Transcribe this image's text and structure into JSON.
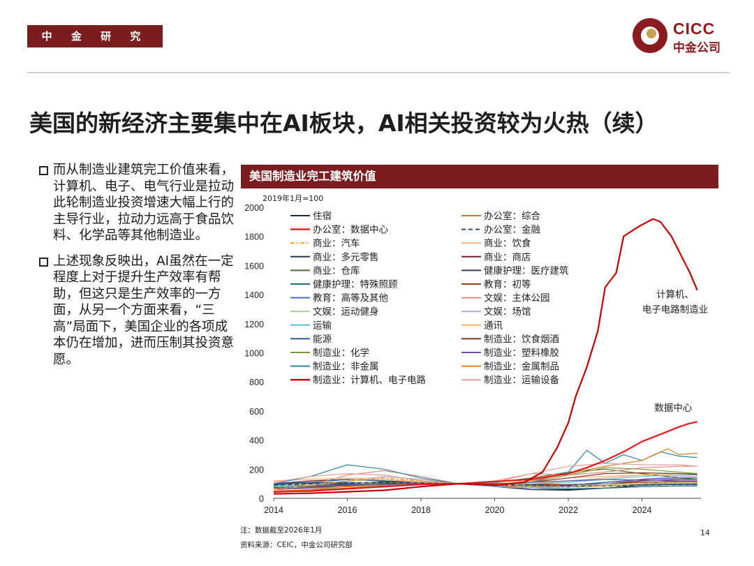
{
  "header": {
    "department": "中 金 研 究 部",
    "logo_en": "CICC",
    "logo_cn": "中金公司"
  },
  "title": "美国的新经济主要集中在AI板块，AI相关投资较为火热（续）",
  "bullets": [
    "而从制造业建筑完工价值来看，计算机、电子、电气行业是拉动此轮制造业投资增速大幅上行的主导行业，拉动力远高于食品饮料、化学品等其他制造业。",
    "上述现象反映出，AI虽然在一定程度上对于提升生产效率有帮助，但这只是生产效率的一方面，从另一个方面来看，“三高”局面下，美国企业的各项成本仍在增加，进而压制其投资意愿。"
  ],
  "chart_header": "美国制造业完工建筑价值",
  "chart_data": {
    "type": "line",
    "title": "美国制造业完工建筑价值",
    "unit_label": "2019年1月=100",
    "xlim": [
      2014,
      2025.6
    ],
    "ylim": [
      0,
      2000
    ],
    "xticks": [
      2014,
      2016,
      2018,
      2020,
      2022,
      2024
    ],
    "yticks": [
      0,
      200,
      400,
      600,
      800,
      1000,
      1200,
      1400,
      1600,
      1800,
      2000
    ],
    "annotations": [
      {
        "text": "计算机、",
        "x": 2024.9,
        "y": 1380
      },
      {
        "text": "电子电路制造业",
        "x": 2024.9,
        "y": 1275
      },
      {
        "text": "数据中心",
        "x": 2024.85,
        "y": 600
      }
    ],
    "series": [
      {
        "name": "住宿",
        "color": "#1f2d3d",
        "dash": "",
        "width": 1.2,
        "x": [
          2014,
          2015,
          2016,
          2017,
          2018,
          2019,
          2020,
          2021,
          2022,
          2023,
          2024,
          2025,
          2025.5
        ],
        "y": [
          70,
          85,
          100,
          115,
          105,
          100,
          85,
          60,
          55,
          70,
          90,
          95,
          95
        ]
      },
      {
        "name": "办公室：综合",
        "color": "#b5811a",
        "dash": "",
        "width": 1.2,
        "x": [
          2014,
          2015,
          2016,
          2017,
          2018,
          2019,
          2020,
          2021,
          2022,
          2023,
          2024,
          2025,
          2025.5
        ],
        "y": [
          60,
          75,
          90,
          100,
          100,
          100,
          95,
          85,
          80,
          85,
          95,
          100,
          100
        ]
      },
      {
        "name": "办公室：数据中心",
        "color": "#e41a1c",
        "dash": "",
        "width": 2.2,
        "x": [
          2014,
          2015,
          2016,
          2017,
          2018,
          2019,
          2020,
          2021,
          2022,
          2022.5,
          2023,
          2023.5,
          2024,
          2024.5,
          2025,
          2025.3,
          2025.5
        ],
        "y": [
          45,
          50,
          65,
          80,
          95,
          100,
          115,
          130,
          170,
          210,
          260,
          320,
          390,
          440,
          490,
          515,
          525
        ]
      },
      {
        "name": "办公室：金融",
        "color": "#2c4a7a",
        "dash": "6 4",
        "width": 1.6,
        "x": [
          2014,
          2015,
          2016,
          2017,
          2018,
          2019,
          2020,
          2021,
          2022,
          2023,
          2024,
          2025,
          2025.5
        ],
        "y": [
          90,
          100,
          105,
          110,
          105,
          100,
          95,
          90,
          85,
          85,
          90,
          95,
          95
        ]
      },
      {
        "name": "商业：汽车",
        "color": "#f0a020",
        "dash": "6 3 2 3",
        "width": 1.6,
        "x": [
          2014,
          2015,
          2016,
          2017,
          2018,
          2019,
          2020,
          2021,
          2022,
          2023,
          2024,
          2025,
          2025.5
        ],
        "y": [
          60,
          90,
          120,
          140,
          120,
          100,
          90,
          80,
          75,
          85,
          100,
          110,
          110
        ]
      },
      {
        "name": "商业：饮食",
        "color": "#f4b183",
        "dash": "",
        "width": 1.2,
        "x": [
          2014,
          2015,
          2016,
          2017,
          2018,
          2019,
          2020,
          2021,
          2022,
          2023,
          2024,
          2025,
          2025.5
        ],
        "y": [
          80,
          100,
          120,
          130,
          115,
          100,
          90,
          110,
          140,
          150,
          160,
          150,
          150
        ]
      },
      {
        "name": "商业：多元零售",
        "color": "#243b55",
        "dash": "",
        "width": 1.2,
        "x": [
          2014,
          2015,
          2016,
          2017,
          2018,
          2019,
          2020,
          2021,
          2022,
          2023,
          2024,
          2025,
          2025.5
        ],
        "y": [
          95,
          105,
          110,
          105,
          100,
          100,
          80,
          60,
          60,
          70,
          80,
          85,
          85
        ]
      },
      {
        "name": "商业：商店",
        "color": "#7b1c2a",
        "dash": "",
        "width": 1.2,
        "x": [
          2014,
          2015,
          2016,
          2017,
          2018,
          2019,
          2020,
          2021,
          2022,
          2023,
          2024,
          2025,
          2025.5
        ],
        "y": [
          100,
          120,
          130,
          120,
          110,
          100,
          80,
          70,
          80,
          100,
          120,
          130,
          130
        ]
      },
      {
        "name": "商业：仓库",
        "color": "#556b2f",
        "dash": "",
        "width": 1.2,
        "x": [
          2014,
          2015,
          2016,
          2017,
          2018,
          2019,
          2020,
          2021,
          2022,
          2023,
          2024,
          2025,
          2025.5
        ],
        "y": [
          40,
          55,
          70,
          85,
          95,
          100,
          110,
          140,
          180,
          200,
          170,
          140,
          130
        ]
      },
      {
        "name": "健康护理：医疗建筑",
        "color": "#3b3560",
        "dash": "",
        "width": 1.2,
        "x": [
          2014,
          2015,
          2016,
          2017,
          2018,
          2019,
          2020,
          2021,
          2022,
          2023,
          2024,
          2025,
          2025.5
        ],
        "y": [
          85,
          90,
          95,
          100,
          100,
          100,
          100,
          95,
          95,
          100,
          110,
          115,
          115
        ]
      },
      {
        "name": "健康护理：特殊照顾",
        "color": "#1f6f7a",
        "dash": "",
        "width": 1.2,
        "x": [
          2014,
          2015,
          2016,
          2017,
          2018,
          2019,
          2020,
          2021,
          2022,
          2023,
          2024,
          2025,
          2025.5
        ],
        "y": [
          90,
          110,
          130,
          120,
          110,
          100,
          85,
          70,
          65,
          70,
          80,
          85,
          85
        ]
      },
      {
        "name": "教育：初等",
        "color": "#8b4513",
        "dash": "",
        "width": 1.2,
        "x": [
          2014,
          2015,
          2016,
          2017,
          2018,
          2019,
          2020,
          2021,
          2022,
          2023,
          2024,
          2025,
          2025.5
        ],
        "y": [
          75,
          80,
          85,
          95,
          100,
          100,
          105,
          100,
          95,
          100,
          110,
          115,
          115
        ]
      },
      {
        "name": "教育：高等及其他",
        "color": "#4472c4",
        "dash": "",
        "width": 1.2,
        "x": [
          2014,
          2015,
          2016,
          2017,
          2018,
          2019,
          2020,
          2021,
          2022,
          2023,
          2024,
          2025,
          2025.5
        ],
        "y": [
          80,
          85,
          90,
          95,
          100,
          100,
          100,
          90,
          85,
          90,
          95,
          100,
          100
        ]
      },
      {
        "name": "文娱：主体公园",
        "color": "#e8877a",
        "dash": "",
        "width": 1.2,
        "x": [
          2014,
          2015,
          2016,
          2017,
          2018,
          2019,
          2020,
          2021,
          2022,
          2023,
          2024,
          2025,
          2025.5
        ],
        "y": [
          60,
          90,
          160,
          190,
          150,
          100,
          110,
          170,
          160,
          180,
          210,
          220,
          220
        ]
      },
      {
        "name": "文娱：运动健身",
        "color": "#a9d18e",
        "dash": "",
        "width": 1.2,
        "x": [
          2014,
          2015,
          2016,
          2017,
          2018,
          2019,
          2020,
          2021,
          2022,
          2023,
          2024,
          2025,
          2025.5
        ],
        "y": [
          85,
          95,
          105,
          110,
          105,
          100,
          95,
          85,
          80,
          90,
          100,
          105,
          105
        ]
      },
      {
        "name": "文娱：场馆",
        "color": "#b4a7d6",
        "dash": "",
        "width": 1.2,
        "x": [
          2014,
          2015,
          2016,
          2017,
          2018,
          2019,
          2020,
          2021,
          2022,
          2023,
          2024,
          2025,
          2025.5
        ],
        "y": [
          70,
          90,
          120,
          150,
          130,
          100,
          80,
          70,
          80,
          100,
          130,
          150,
          150
        ]
      },
      {
        "name": "运输",
        "color": "#5bc0de",
        "dash": "",
        "width": 1.2,
        "x": [
          2014,
          2015,
          2016,
          2017,
          2018,
          2019,
          2020,
          2021,
          2022,
          2023,
          2024,
          2025,
          2025.5
        ],
        "y": [
          80,
          85,
          90,
          95,
          100,
          100,
          105,
          100,
          110,
          130,
          150,
          160,
          160
        ]
      },
      {
        "name": "通讯",
        "color": "#f6b26b",
        "dash": "",
        "width": 1.2,
        "x": [
          2014,
          2015,
          2016,
          2017,
          2018,
          2019,
          2020,
          2021,
          2022,
          2023,
          2024,
          2025,
          2025.5
        ],
        "y": [
          120,
          130,
          140,
          130,
          110,
          100,
          90,
          100,
          120,
          140,
          160,
          170,
          170
        ]
      },
      {
        "name": "能源",
        "color": "#2f5597",
        "dash": "",
        "width": 1.2,
        "x": [
          2014,
          2015,
          2016,
          2017,
          2018,
          2019,
          2020,
          2021,
          2022,
          2023,
          2024,
          2025,
          2025.5
        ],
        "y": [
          100,
          110,
          100,
          95,
          100,
          100,
          90,
          80,
          90,
          110,
          130,
          140,
          140
        ]
      },
      {
        "name": "制造业：饮食烟酒",
        "color": "#8c2d2d",
        "dash": "",
        "width": 1.2,
        "x": [
          2014,
          2015,
          2016,
          2017,
          2018,
          2019,
          2020,
          2021,
          2022,
          2023,
          2024,
          2025,
          2025.5
        ],
        "y": [
          70,
          80,
          90,
          100,
          100,
          100,
          100,
          110,
          140,
          170,
          175,
          170,
          165
        ]
      },
      {
        "name": "制造业：化学",
        "color": "#7f9a3a",
        "dash": "",
        "width": 1.2,
        "x": [
          2014,
          2015,
          2016,
          2017,
          2018,
          2019,
          2020,
          2021,
          2022,
          2023,
          2024,
          2025,
          2025.5
        ],
        "y": [
          40,
          60,
          90,
          110,
          105,
          100,
          90,
          110,
          160,
          210,
          200,
          180,
          170
        ]
      },
      {
        "name": "制造业：塑料橡胶",
        "color": "#674ea7",
        "dash": "",
        "width": 1.2,
        "x": [
          2014,
          2015,
          2016,
          2017,
          2018,
          2019,
          2020,
          2021,
          2022,
          2023,
          2024,
          2025,
          2025.5
        ],
        "y": [
          60,
          70,
          90,
          100,
          100,
          100,
          95,
          110,
          120,
          130,
          125,
          120,
          120
        ]
      },
      {
        "name": "制造业：非金属",
        "color": "#31869b",
        "dash": "",
        "width": 1.2,
        "x": [
          2014,
          2015,
          2016,
          2017,
          2018,
          2019,
          2020,
          2021,
          2022,
          2022.5,
          2023,
          2023.5,
          2024,
          2024.5,
          2025,
          2025.5
        ],
        "y": [
          100,
          150,
          230,
          200,
          140,
          100,
          90,
          110,
          180,
          330,
          240,
          300,
          260,
          320,
          290,
          280
        ]
      },
      {
        "name": "制造业：金属制品",
        "color": "#e67e22",
        "dash": "",
        "width": 1.2,
        "x": [
          2014,
          2015,
          2016,
          2017,
          2018,
          2019,
          2020,
          2021,
          2022,
          2023,
          2024,
          2024.7,
          2025,
          2025.5
        ],
        "y": [
          50,
          60,
          80,
          90,
          95,
          100,
          95,
          120,
          170,
          220,
          260,
          340,
          300,
          310
        ]
      },
      {
        "name": "制造业：计算机、电子电路",
        "color": "#c00000",
        "dash": "",
        "width": 2.2,
        "x": [
          2014,
          2015,
          2016,
          2017,
          2018,
          2019,
          2020,
          2020.8,
          2021.3,
          2021.7,
          2022,
          2022.2,
          2022.5,
          2022.8,
          2023,
          2023.3,
          2023.5,
          2023.8,
          2024,
          2024.3,
          2024.5,
          2024.8,
          2025,
          2025.3,
          2025.5
        ],
        "y": [
          30,
          35,
          45,
          55,
          80,
          100,
          90,
          110,
          180,
          350,
          520,
          700,
          900,
          1150,
          1450,
          1550,
          1800,
          1850,
          1880,
          1920,
          1900,
          1800,
          1700,
          1550,
          1430
        ]
      },
      {
        "name": "制造业：运输设备",
        "color": "#e6a0a0",
        "dash": "",
        "width": 1.2,
        "x": [
          2014,
          2015,
          2016,
          2017,
          2018,
          2019,
          2020,
          2021,
          2022,
          2023,
          2024,
          2025,
          2025.5
        ],
        "y": [
          110,
          150,
          170,
          160,
          120,
          100,
          120,
          170,
          220,
          240,
          230,
          230,
          220
        ]
      }
    ]
  },
  "note": "注：数据截至2026年1月",
  "source": "资料来源：CEIC，中金公司研究部",
  "page_number": "14"
}
